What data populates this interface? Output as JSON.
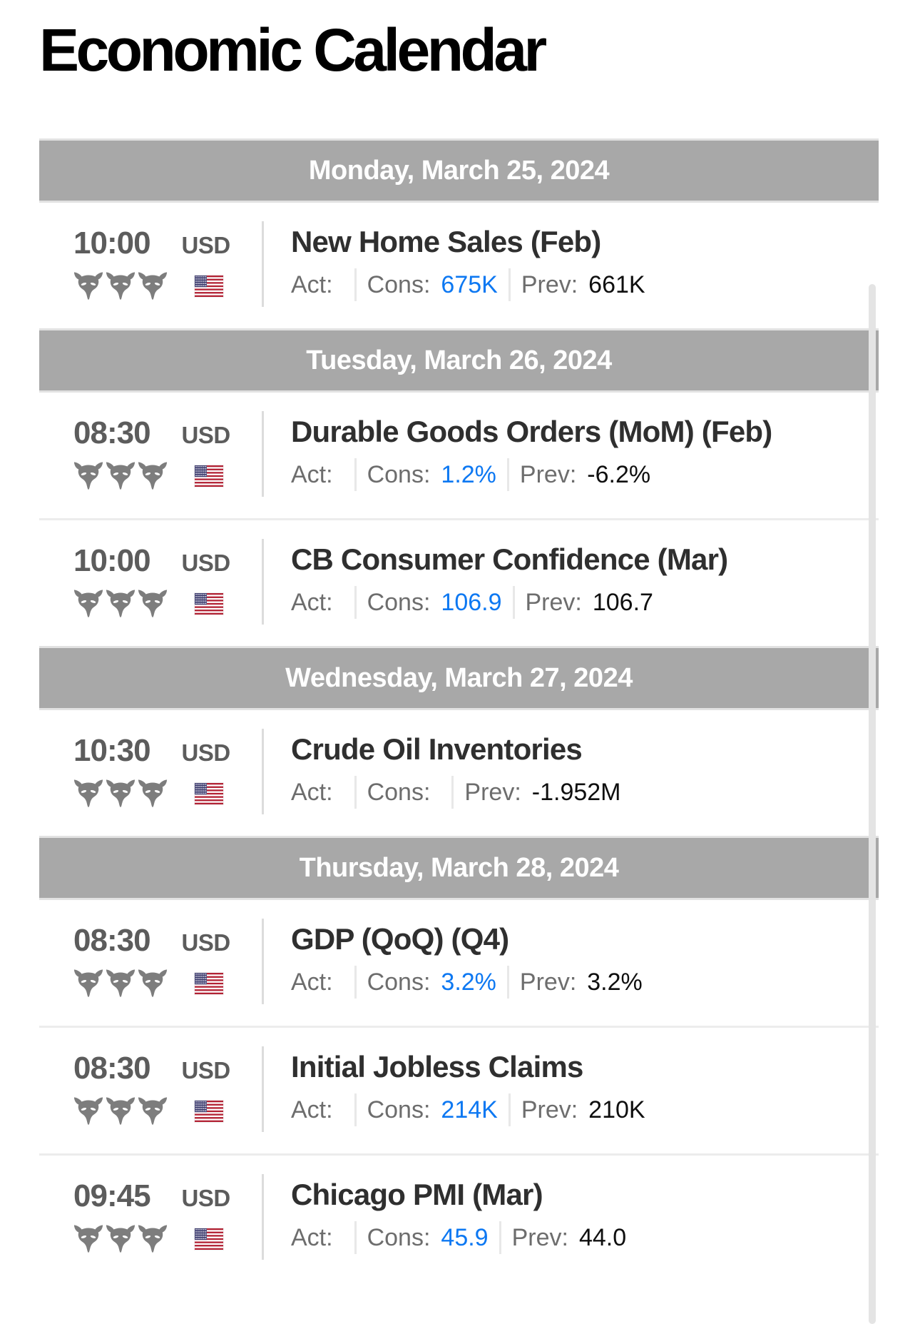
{
  "page_title": "Economic Calendar",
  "labels": {
    "act": "Act:",
    "cons": "Cons:",
    "prev": "Prev:"
  },
  "colors": {
    "day_bar_bg": "#a8a8a8",
    "day_bar_text": "#ffffff",
    "consensus_blue": "#0d78f2",
    "prev_value": "#0f0f0f",
    "muted_label": "#6d6d6d",
    "time_text": "#5c5c5c",
    "event_title_text": "#2f2f2f",
    "bull_gray": "#7d7d7d"
  },
  "icons": {
    "importance": "bull-icon",
    "country": "us-flag-icon"
  },
  "days": [
    {
      "label": "Monday, March 25, 2024",
      "events": [
        {
          "time": "10:00",
          "currency": "USD",
          "importance": 3,
          "country": "US",
          "title": "New Home Sales (Feb)",
          "act": "",
          "cons": "675K",
          "prev": "661K"
        }
      ]
    },
    {
      "label": "Tuesday, March 26, 2024",
      "events": [
        {
          "time": "08:30",
          "currency": "USD",
          "importance": 3,
          "country": "US",
          "title": "Durable Goods Orders (MoM) (Feb)",
          "act": "",
          "cons": "1.2%",
          "prev": "-6.2%"
        },
        {
          "time": "10:00",
          "currency": "USD",
          "importance": 3,
          "country": "US",
          "title": "CB Consumer Confidence (Mar)",
          "act": "",
          "cons": "106.9",
          "prev": "106.7"
        }
      ]
    },
    {
      "label": "Wednesday, March 27, 2024",
      "events": [
        {
          "time": "10:30",
          "currency": "USD",
          "importance": 3,
          "country": "US",
          "title": "Crude Oil Inventories",
          "act": "",
          "cons": "",
          "prev": "-1.952M"
        }
      ]
    },
    {
      "label": "Thursday, March 28, 2024",
      "events": [
        {
          "time": "08:30",
          "currency": "USD",
          "importance": 3,
          "country": "US",
          "title": "GDP (QoQ) (Q4)",
          "act": "",
          "cons": "3.2%",
          "prev": "3.2%"
        },
        {
          "time": "08:30",
          "currency": "USD",
          "importance": 3,
          "country": "US",
          "title": "Initial Jobless Claims",
          "act": "",
          "cons": "214K",
          "prev": "210K"
        },
        {
          "time": "09:45",
          "currency": "USD",
          "importance": 3,
          "country": "US",
          "title": "Chicago PMI (Mar)",
          "act": "",
          "cons": "45.9",
          "prev": "44.0"
        }
      ]
    }
  ]
}
